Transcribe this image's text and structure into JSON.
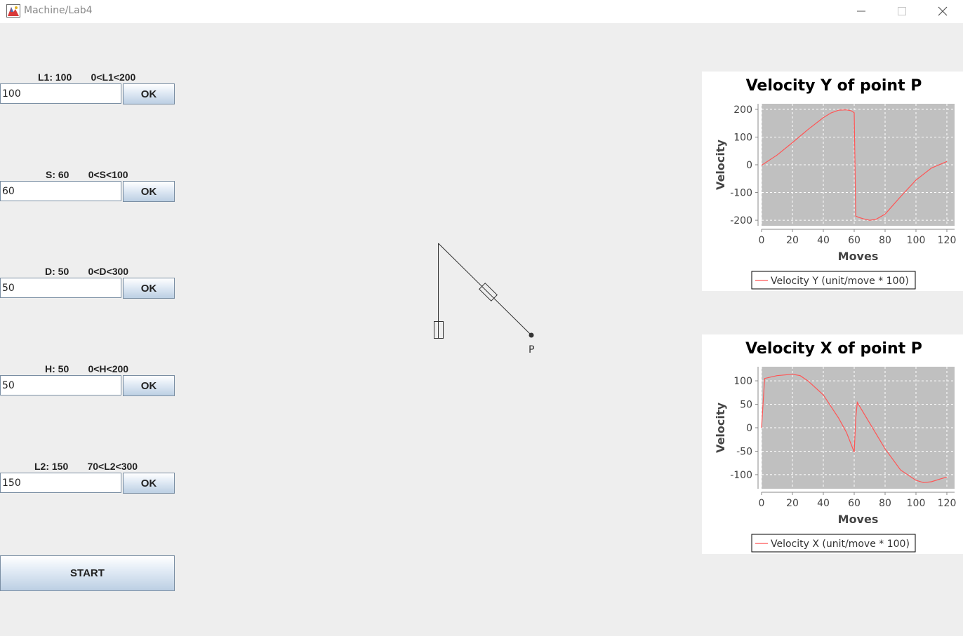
{
  "window": {
    "title": "Machine/Lab4"
  },
  "params": [
    {
      "label": "L1: 100       0<L1<200",
      "value": "100",
      "ok_label": "OK"
    },
    {
      "label": "S: 60       0<S<100",
      "value": "60",
      "ok_label": "OK"
    },
    {
      "label": "D: 50       0<D<300",
      "value": "50",
      "ok_label": "OK"
    },
    {
      "label": "H: 50       0<H<200",
      "value": "50",
      "ok_label": "OK"
    },
    {
      "label": "L2: 150       70<L2<300",
      "value": "150",
      "ok_label": "OK"
    }
  ],
  "start_label": "START",
  "mechanism": {
    "point_label": "P"
  },
  "chart_data": [
    {
      "type": "line",
      "title": "Velocity Y of point P",
      "xlabel": "Moves",
      "ylabel": "Velocity",
      "xlim": [
        0,
        125
      ],
      "ylim": [
        -220,
        220
      ],
      "xticks": [
        0,
        20,
        40,
        60,
        80,
        100,
        120
      ],
      "yticks": [
        200,
        100,
        0,
        -100,
        -200
      ],
      "grid": true,
      "legend": "bottom",
      "series_color": "#ff5555",
      "series": [
        {
          "name": "Velocity Y (unit/move * 100)",
          "x": [
            0,
            10,
            20,
            30,
            40,
            45,
            50,
            55,
            58,
            60,
            61,
            63,
            66,
            70,
            74,
            80,
            90,
            100,
            110,
            120
          ],
          "y": [
            -2,
            35,
            80,
            127,
            170,
            187,
            197,
            198,
            195,
            188,
            -185,
            -190,
            -195,
            -200,
            -197,
            -178,
            -115,
            -55,
            -12,
            12
          ]
        }
      ]
    },
    {
      "type": "line",
      "title": "Velocity X of point P",
      "xlabel": "Moves",
      "ylabel": "Velocity",
      "xlim": [
        0,
        125
      ],
      "ylim": [
        -130,
        130
      ],
      "xticks": [
        0,
        20,
        40,
        60,
        80,
        100,
        120
      ],
      "yticks": [
        100,
        50,
        0,
        -50,
        -100
      ],
      "grid": true,
      "legend": "bottom",
      "series_color": "#ff5555",
      "series": [
        {
          "name": "Velocity X (unit/move * 100)",
          "x": [
            0,
            2,
            10,
            20,
            25,
            30,
            40,
            50,
            55,
            60,
            61,
            62,
            70,
            80,
            90,
            100,
            105,
            110,
            115,
            120
          ],
          "y": [
            0,
            105,
            111,
            114,
            111,
            100,
            70,
            20,
            -10,
            -52,
            20,
            54,
            10,
            -45,
            -90,
            -112,
            -117,
            -115,
            -110,
            -105
          ]
        }
      ]
    }
  ]
}
